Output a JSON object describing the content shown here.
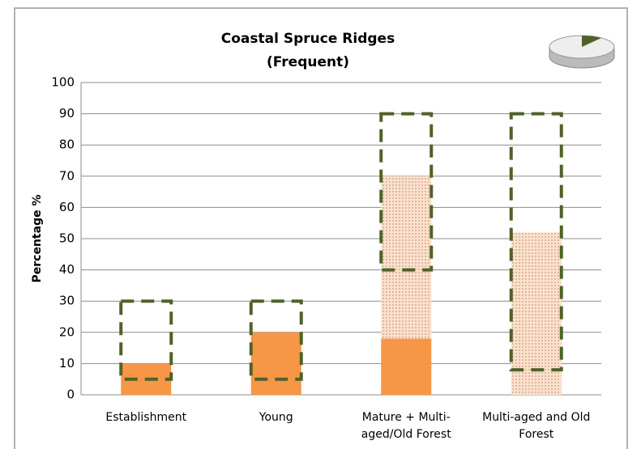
{
  "chart_data": {
    "type": "stacked_bar_range",
    "title": "Coastal Spruce Ridges",
    "subtitle": "(Frequent)",
    "y_label": "Percentage %",
    "categories": [
      "Establishment",
      "Young",
      "Mature + Multi-aged/Old Forest",
      "Multi-aged and Old Forest"
    ],
    "series": [
      {
        "color": "#f79646",
        "pattern": "solid",
        "values": [
          10,
          20,
          18,
          0
        ]
      },
      {
        "color": "#fbe1cd",
        "pattern": "dotted",
        "values": [
          0,
          0,
          52,
          52
        ]
      }
    ],
    "ranges": {
      "color": "#4f6228",
      "low": [
        5,
        5,
        40,
        8
      ],
      "high": [
        30,
        30,
        90,
        90
      ]
    },
    "ylim": [
      0,
      100
    ],
    "yticks": [
      0,
      10,
      20,
      30,
      40,
      50,
      60,
      70,
      80,
      90,
      100
    ],
    "grid": true
  }
}
